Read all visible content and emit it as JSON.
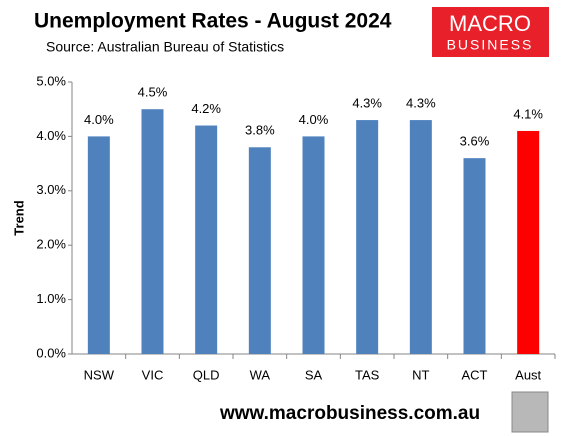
{
  "chart_data": {
    "type": "bar",
    "title": "Unemployment Rates - August 2024",
    "subtitle": "Source: Australian Bureau of Statistics",
    "logo_text": [
      "MACRO",
      "BUSINESS"
    ],
    "footer": "www.macrobusiness.com.au",
    "ylabel": "Trend",
    "categories": [
      "NSW",
      "VIC",
      "QLD",
      "WA",
      "SA",
      "TAS",
      "NT",
      "ACT",
      "Aust"
    ],
    "values": [
      4.0,
      4.5,
      4.2,
      3.8,
      4.0,
      4.3,
      4.3,
      3.6,
      4.1
    ],
    "value_labels": [
      "4.0%",
      "4.5%",
      "4.2%",
      "3.8%",
      "4.0%",
      "4.3%",
      "4.3%",
      "3.6%",
      "4.1%"
    ],
    "colors": [
      "#4f81bd",
      "#4f81bd",
      "#4f81bd",
      "#4f81bd",
      "#4f81bd",
      "#4f81bd",
      "#4f81bd",
      "#4f81bd",
      "#ff0000"
    ],
    "ylim": [
      0,
      5
    ],
    "yticks": [
      {
        "value": 0,
        "label": "0.0%"
      },
      {
        "value": 1,
        "label": "1.0%"
      },
      {
        "value": 2,
        "label": "2.0%"
      },
      {
        "value": 3,
        "label": "3.0%"
      },
      {
        "value": 4,
        "label": "4.0%"
      },
      {
        "value": 5,
        "label": "5.0%"
      }
    ],
    "grid": false
  }
}
